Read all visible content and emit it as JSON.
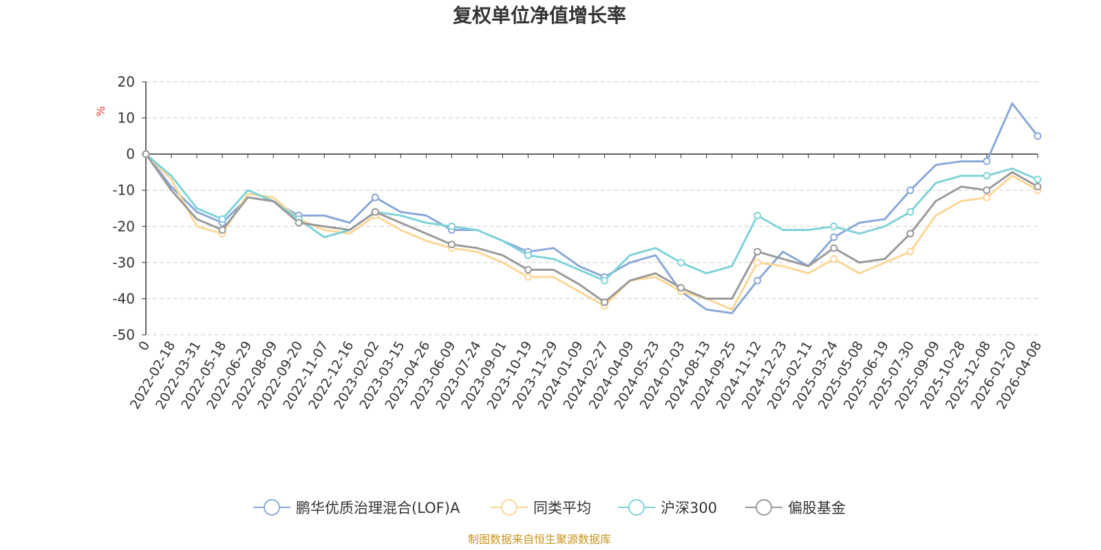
{
  "chart_data": {
    "type": "line",
    "title": "复权单位净值增长率",
    "ylabel": "%",
    "ylim": [
      -50,
      20
    ],
    "yticks": [
      "20",
      "10",
      "0",
      "-10",
      "-20",
      "-30",
      "-40",
      "-50"
    ],
    "xlabels": [
      "0",
      "2022-02-18",
      "2022-03-31",
      "2022-05-18",
      "2022-06-29",
      "2022-08-09",
      "2022-09-20",
      "2022-11-07",
      "2022-12-16",
      "2023-02-02",
      "2023-03-15",
      "2023-04-26",
      "2023-06-09",
      "2023-07-24",
      "2023-09-01",
      "2023-10-19",
      "2023-11-29",
      "2024-01-09",
      "2024-02-27",
      "2024-04-09",
      "2024-05-23",
      "2024-07-03",
      "2024-08-13",
      "2024-09-25",
      "2024-11-12",
      "2024-12-23",
      "2025-02-11",
      "2025-03-24",
      "2025-05-08",
      "2025-06-19",
      "2025-07-30",
      "2025-09-09",
      "2025-10-28",
      "2025-12-08",
      "2026-01-20",
      "2026-04-08"
    ],
    "grid": true,
    "legend_position": "bottom",
    "series": [
      {
        "name": "鹏华优质治理混合(LOF)A",
        "color": "#8aa8d8",
        "values": [
          0,
          -9,
          -16,
          -19,
          -12,
          -13,
          -17,
          -17,
          -19,
          -12,
          -16,
          -17,
          -21,
          -21,
          -24,
          -27,
          -26,
          -31,
          -34,
          -30,
          -28,
          -38,
          -43,
          -44,
          -35,
          -27,
          -31,
          -23,
          -19,
          -18,
          -10,
          -3,
          -2,
          -2,
          14,
          5
        ]
      },
      {
        "name": "同类平均",
        "color": "#fdd696",
        "values": [
          0,
          -7,
          -20,
          -22,
          -11,
          -12,
          -18,
          -21,
          -22,
          -17,
          -21,
          -24,
          -26,
          -27,
          -30,
          -34,
          -34,
          -38,
          -42,
          -35,
          -34,
          -38,
          -40,
          -43,
          -30,
          -31,
          -33,
          -29,
          -33,
          -30,
          -27,
          -17,
          -13,
          -12,
          -6,
          -10
        ]
      },
      {
        "name": "沪深300",
        "color": "#7fd3d8",
        "values": [
          0,
          -6,
          -15,
          -18,
          -10,
          -13,
          -18,
          -23,
          -21,
          -16,
          -17,
          -19,
          -20,
          -21,
          -24,
          -28,
          -29,
          -32,
          -35,
          -28,
          -26,
          -30,
          -33,
          -31,
          -17,
          -21,
          -21,
          -20,
          -22,
          -20,
          -16,
          -8,
          -6,
          -6,
          -4,
          -7
        ]
      },
      {
        "name": "偏股基金",
        "color": "#999999",
        "values": [
          0,
          -10,
          -18,
          -21,
          -12,
          -13,
          -19,
          -20,
          -21,
          -16,
          -19,
          -22,
          -25,
          -26,
          -28,
          -32,
          -32,
          -36,
          -41,
          -35,
          -33,
          -37,
          -40,
          -40,
          -27,
          -29,
          -31,
          -26,
          -30,
          -29,
          -22,
          -13,
          -9,
          -10,
          -5,
          -9
        ]
      }
    ]
  },
  "footer": {
    "source": "制图数据来自恒生聚源数据库"
  }
}
